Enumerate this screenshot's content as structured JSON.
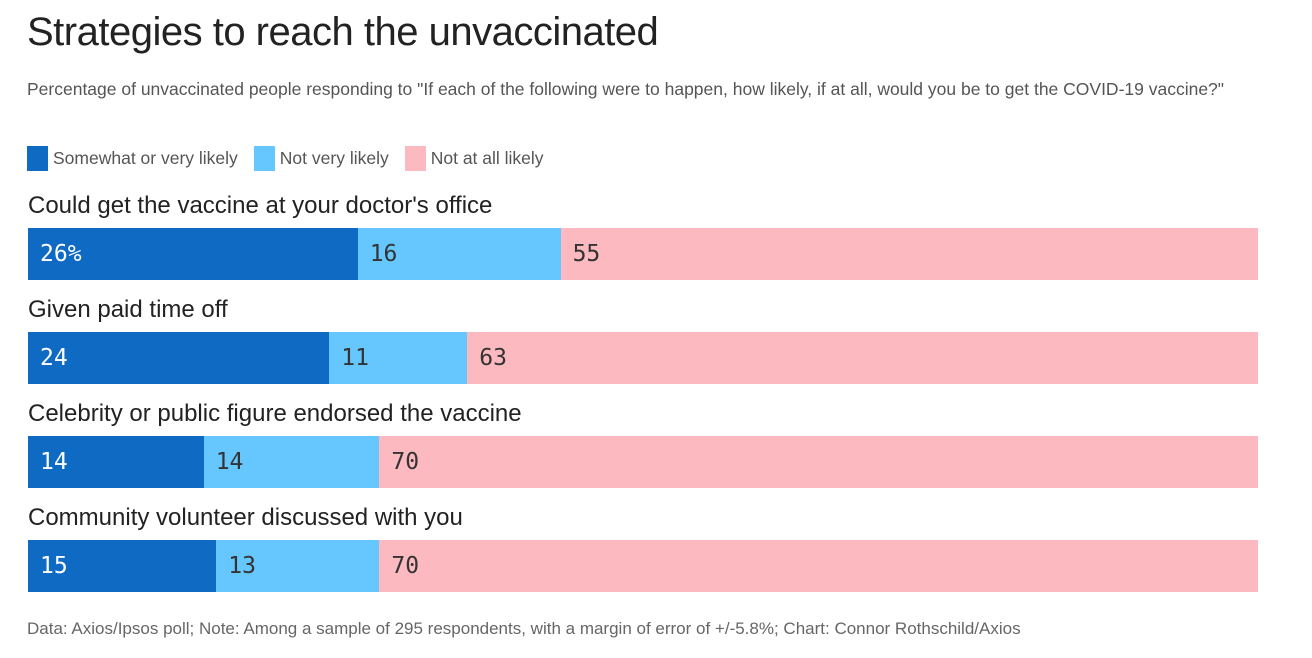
{
  "title": "Strategies to reach the unvaccinated",
  "subtitle": "Percentage of unvaccinated people responding to \"If each of the following were to happen, how likely, if at all, would you be to get the COVID-19 vaccine?\"",
  "legend": [
    {
      "name": "Somewhat or very likely",
      "color": "#0f6ac4"
    },
    {
      "name": "Not very likely",
      "color": "#66c7ff"
    },
    {
      "name": "Not at all likely",
      "color": "#fcb9c0"
    }
  ],
  "footer": "Data: Axios/Ipsos poll; Note: Among a sample of 295 respondents, with a margin of error of +/-5.8%; Chart: Connor Rothschild/Axios",
  "chart_data": {
    "type": "bar",
    "orientation": "horizontal",
    "stacked": true,
    "categories": [
      "Could get the vaccine at your doctor's office",
      "Given paid time off",
      "Celebrity or public figure endorsed the vaccine",
      "Community volunteer discussed with you"
    ],
    "series": [
      {
        "name": "Somewhat or very likely",
        "values": [
          26,
          24,
          14,
          15
        ],
        "labels": [
          "26%",
          "24",
          "14",
          "15"
        ]
      },
      {
        "name": "Not very likely",
        "values": [
          16,
          11,
          14,
          13
        ],
        "labels": [
          "16",
          "11",
          "14",
          "13"
        ]
      },
      {
        "name": "Not at all likely",
        "values": [
          55,
          63,
          70,
          70
        ],
        "labels": [
          "55",
          "63",
          "70",
          "70"
        ]
      }
    ],
    "colors": [
      "#0f6ac4",
      "#66c7ff",
      "#fcb9c0"
    ],
    "label_colors": [
      "#ffffff",
      "#333333",
      "#333333"
    ],
    "legend_position": "top-left",
    "grid": false
  }
}
